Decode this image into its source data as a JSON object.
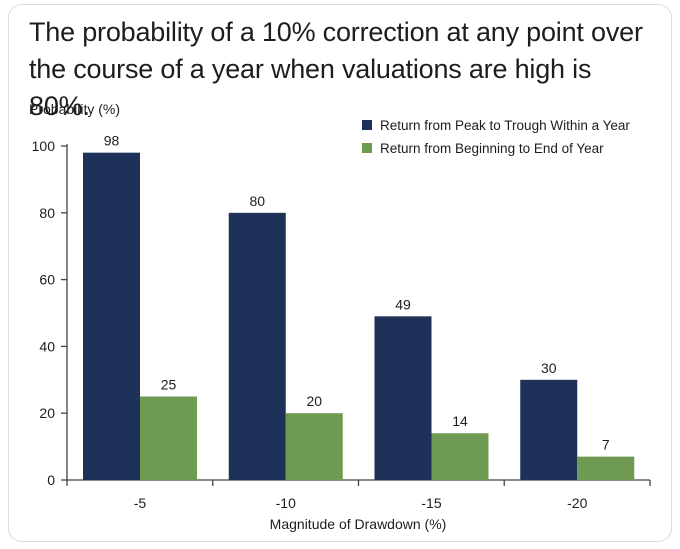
{
  "title": "The probability of a 10% correction at any point over the course of a year when valuations are high is 80%.",
  "colors": {
    "series1": "#1e3158",
    "series2": "#6f9a52",
    "axis": "#444444"
  },
  "chart_data": {
    "type": "bar",
    "categories": [
      "-5",
      "-10",
      "-15",
      "-20"
    ],
    "series": [
      {
        "name": "Return from Peak to Trough Within a Year",
        "values": [
          98,
          80,
          49,
          30
        ]
      },
      {
        "name": "Return from Beginning to End of Year",
        "values": [
          25,
          20,
          14,
          7
        ]
      }
    ],
    "ylabel": "Probability (%)",
    "xlabel": "Magnitude of Drawdown (%)",
    "ylim": [
      0,
      100
    ],
    "yticks": [
      0,
      20,
      40,
      60,
      80,
      100
    ],
    "legend_position": "top-right",
    "grid": false
  }
}
